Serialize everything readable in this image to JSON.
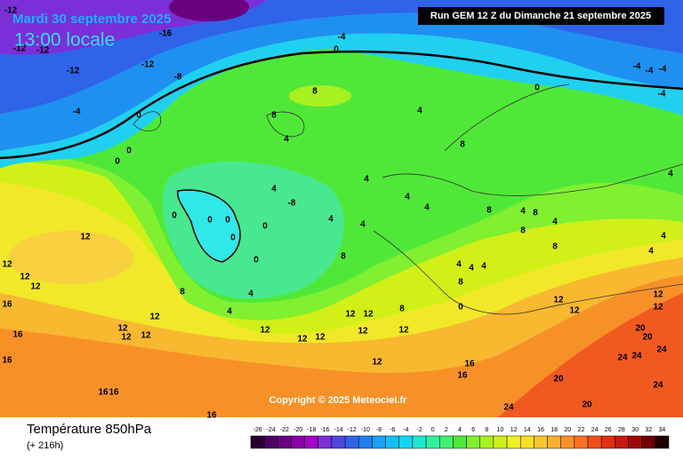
{
  "header": {
    "date": "Mardi 30 septembre 2025",
    "time": "13:00 locale",
    "run": "Run GEM 12 Z du Dimanche 21 septembre 2025"
  },
  "map": {
    "contour_labels": [
      -12,
      -12,
      -12,
      -16,
      -12,
      -12,
      -8,
      -4,
      0,
      -4,
      0,
      0,
      0,
      -4,
      -4,
      -4,
      -4,
      0,
      8,
      8,
      4,
      4,
      8,
      4,
      -8,
      4,
      4,
      4,
      0,
      0,
      0,
      0,
      0,
      0,
      4,
      4,
      8,
      8,
      4,
      4,
      12,
      12,
      12,
      12,
      16,
      16,
      16,
      12,
      12,
      12,
      12,
      12,
      12,
      12,
      12,
      12,
      12,
      12,
      12,
      16,
      16,
      16,
      16,
      16,
      20,
      20,
      24,
      24,
      24,
      24,
      24,
      20,
      20,
      4,
      8,
      4,
      8,
      4,
      4,
      12,
      12,
      12,
      12,
      4,
      4,
      4,
      8,
      0,
      8,
      4,
      8,
      8
    ]
  },
  "footer": {
    "title": "Température 850hPa",
    "lead": "(+ 216h)",
    "copyright": "Copyright © 2025 Meteociel.fr"
  },
  "legend": {
    "values": [
      -26,
      -24,
      -22,
      -20,
      -18,
      -16,
      -14,
      -12,
      -10,
      -8,
      -6,
      -4,
      -2,
      0,
      2,
      4,
      6,
      8,
      10,
      12,
      14,
      16,
      18,
      20,
      22,
      24,
      26,
      28,
      30,
      32,
      34
    ],
    "colors": [
      "#2a0033",
      "#4b0063",
      "#6a0080",
      "#8a00a8",
      "#a300c8",
      "#7a2fd8",
      "#5046e0",
      "#2f63e8",
      "#1f80f0",
      "#1aa0f5",
      "#14bff8",
      "#10d8f0",
      "#20e8d0",
      "#30f0a0",
      "#40f070",
      "#50e838",
      "#80f030",
      "#a8f020",
      "#d0f018",
      "#f0f020",
      "#f8e020",
      "#f8c828",
      "#f8b030",
      "#f89028",
      "#f87020",
      "#f05018",
      "#e03010",
      "#c81810",
      "#a00808",
      "#700000",
      "#200000"
    ]
  }
}
